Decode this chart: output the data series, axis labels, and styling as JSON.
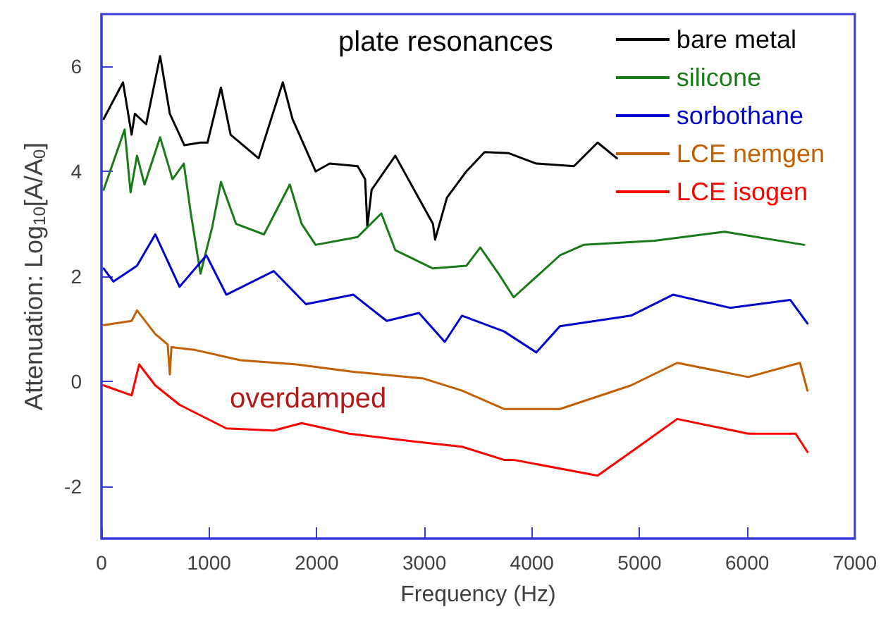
{
  "chart_data": {
    "type": "line",
    "xlabel": "Frequency (Hz)",
    "ylabel": "Attenuation: Log$_{10}$[A/A$_{0}$]",
    "annotations": [
      "plate resonances",
      "overdamped"
    ],
    "xlim": [
      0,
      7000
    ],
    "xticks": [
      0,
      1000,
      2000,
      3000,
      4000,
      5000,
      6000,
      7000
    ],
    "ylim": [
      -3,
      7
    ],
    "yticks": [
      -2,
      0,
      2,
      4,
      6
    ],
    "grid": false,
    "legend": "top right",
    "marker": "none",
    "line_style": "solid",
    "series": [
      {
        "name": "bare metal",
        "color": "#000000",
        "x": [
          20,
          200,
          280,
          310,
          415,
          545,
          635,
          770,
          920,
          985,
          1110,
          1200,
          1460,
          1685,
          1775,
          1990,
          2120,
          2380,
          2450,
          2470,
          2510,
          2730,
          3080,
          3100,
          3210,
          3390,
          3560,
          3780,
          4040,
          4390,
          4610,
          4790
        ],
        "values": [
          5.0,
          5.7,
          4.7,
          5.1,
          4.9,
          6.2,
          5.1,
          4.5,
          4.55,
          4.55,
          5.6,
          4.7,
          4.25,
          5.7,
          5.0,
          4.0,
          4.15,
          4.1,
          3.85,
          2.95,
          3.65,
          4.3,
          3.0,
          2.7,
          3.5,
          4.0,
          4.37,
          4.35,
          4.15,
          4.1,
          4.55,
          4.25
        ]
      },
      {
        "name": "silicone",
        "color": "#1a7a1a",
        "x": [
          20,
          215,
          270,
          330,
          400,
          545,
          660,
          765,
          830,
          920,
          1030,
          1110,
          1250,
          1510,
          1750,
          1860,
          1990,
          2380,
          2600,
          2730,
          3080,
          3390,
          3520,
          3690,
          3830,
          4260,
          4480,
          5140,
          5790,
          6530
        ],
        "values": [
          3.65,
          4.8,
          3.6,
          4.3,
          3.75,
          4.65,
          3.85,
          4.15,
          3.2,
          2.05,
          2.95,
          3.8,
          3.0,
          2.8,
          3.75,
          3.0,
          2.6,
          2.75,
          3.2,
          2.5,
          2.15,
          2.2,
          2.55,
          2.05,
          1.6,
          2.4,
          2.6,
          2.68,
          2.85,
          2.6
        ]
      },
      {
        "name": "sorbothane",
        "color": "#0000cc",
        "x": [
          20,
          110,
          330,
          500,
          725,
          975,
          1160,
          1600,
          1900,
          2340,
          2650,
          2950,
          3190,
          3350,
          3740,
          4040,
          4260,
          4920,
          5310,
          5840,
          6400,
          6560
        ],
        "values": [
          2.15,
          1.9,
          2.2,
          2.8,
          1.8,
          2.4,
          1.65,
          2.1,
          1.47,
          1.65,
          1.15,
          1.3,
          0.75,
          1.25,
          0.95,
          0.55,
          1.05,
          1.25,
          1.65,
          1.4,
          1.55,
          1.1
        ]
      },
      {
        "name": "LCE nemgen",
        "color": "#c06000",
        "x": [
          20,
          280,
          330,
          500,
          615,
          635,
          650,
          860,
          1290,
          1815,
          2340,
          2995,
          3350,
          3740,
          3830,
          4260,
          4920,
          5350,
          6010,
          6490,
          6560
        ],
        "values": [
          1.07,
          1.15,
          1.35,
          0.9,
          0.7,
          0.13,
          0.65,
          0.6,
          0.4,
          0.32,
          0.18,
          0.05,
          -0.18,
          -0.53,
          -0.53,
          -0.53,
          -0.08,
          0.35,
          0.08,
          0.35,
          -0.18
        ]
      },
      {
        "name": "LCE isogen",
        "color": "#ff0000",
        "x": [
          20,
          280,
          350,
          500,
          725,
          1160,
          1600,
          1860,
          2300,
          2900,
          3350,
          3740,
          3830,
          4610,
          4920,
          5350,
          6010,
          6450,
          6560
        ],
        "values": [
          -0.08,
          -0.27,
          0.32,
          -0.08,
          -0.45,
          -0.9,
          -0.94,
          -0.8,
          -1.0,
          -1.15,
          -1.25,
          -1.5,
          -1.5,
          -1.8,
          -1.35,
          -0.72,
          -1.0,
          -1.0,
          -1.35
        ]
      }
    ]
  }
}
